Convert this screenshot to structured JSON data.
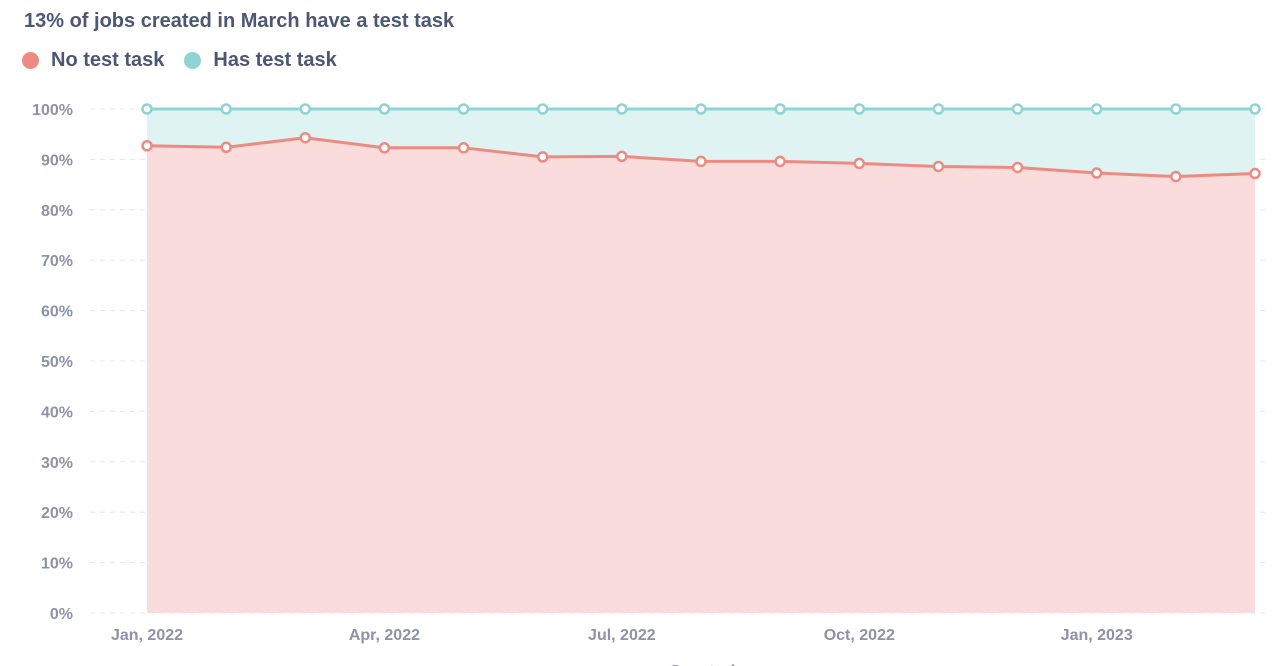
{
  "chart_data": {
    "type": "area",
    "stacked": true,
    "title": "13% of jobs created in March have a test task",
    "xlabel": "Created",
    "ylabel": "",
    "ylim": [
      0,
      1
    ],
    "grid": true,
    "legend_position": "top-left",
    "y_ticks": [
      0,
      0.1,
      0.2,
      0.3,
      0.4,
      0.5,
      0.6,
      0.7,
      0.8,
      0.9,
      1.0
    ],
    "y_tick_labels": [
      "0%",
      "10%",
      "20%",
      "30%",
      "40%",
      "50%",
      "60%",
      "70%",
      "80%",
      "90%",
      "100%"
    ],
    "x": [
      "2022-01",
      "2022-02",
      "2022-03",
      "2022-04",
      "2022-05",
      "2022-06",
      "2022-07",
      "2022-08",
      "2022-09",
      "2022-10",
      "2022-11",
      "2022-12",
      "2023-01",
      "2023-02",
      "2023-03"
    ],
    "x_tick_labels": [
      {
        "x": "2022-01",
        "label": "Jan, 2022"
      },
      {
        "x": "2022-04",
        "label": "Apr, 2022"
      },
      {
        "x": "2022-07",
        "label": "Jul, 2022"
      },
      {
        "x": "2022-10",
        "label": "Oct, 2022"
      },
      {
        "x": "2023-01",
        "label": "Jan, 2023"
      }
    ],
    "series": [
      {
        "name": "No test task",
        "color": "#ed8b83",
        "fill": "#fadcdc",
        "values": [
          0.927,
          0.924,
          0.943,
          0.923,
          0.923,
          0.905,
          0.906,
          0.896,
          0.896,
          0.892,
          0.886,
          0.884,
          0.873,
          0.866,
          0.872
        ]
      },
      {
        "name": "Has test task",
        "color": "#8fd4d4",
        "fill": "#dff3f3",
        "values": [
          0.073,
          0.076,
          0.057,
          0.077,
          0.077,
          0.095,
          0.094,
          0.104,
          0.104,
          0.108,
          0.114,
          0.116,
          0.127,
          0.134,
          0.128
        ]
      }
    ]
  }
}
